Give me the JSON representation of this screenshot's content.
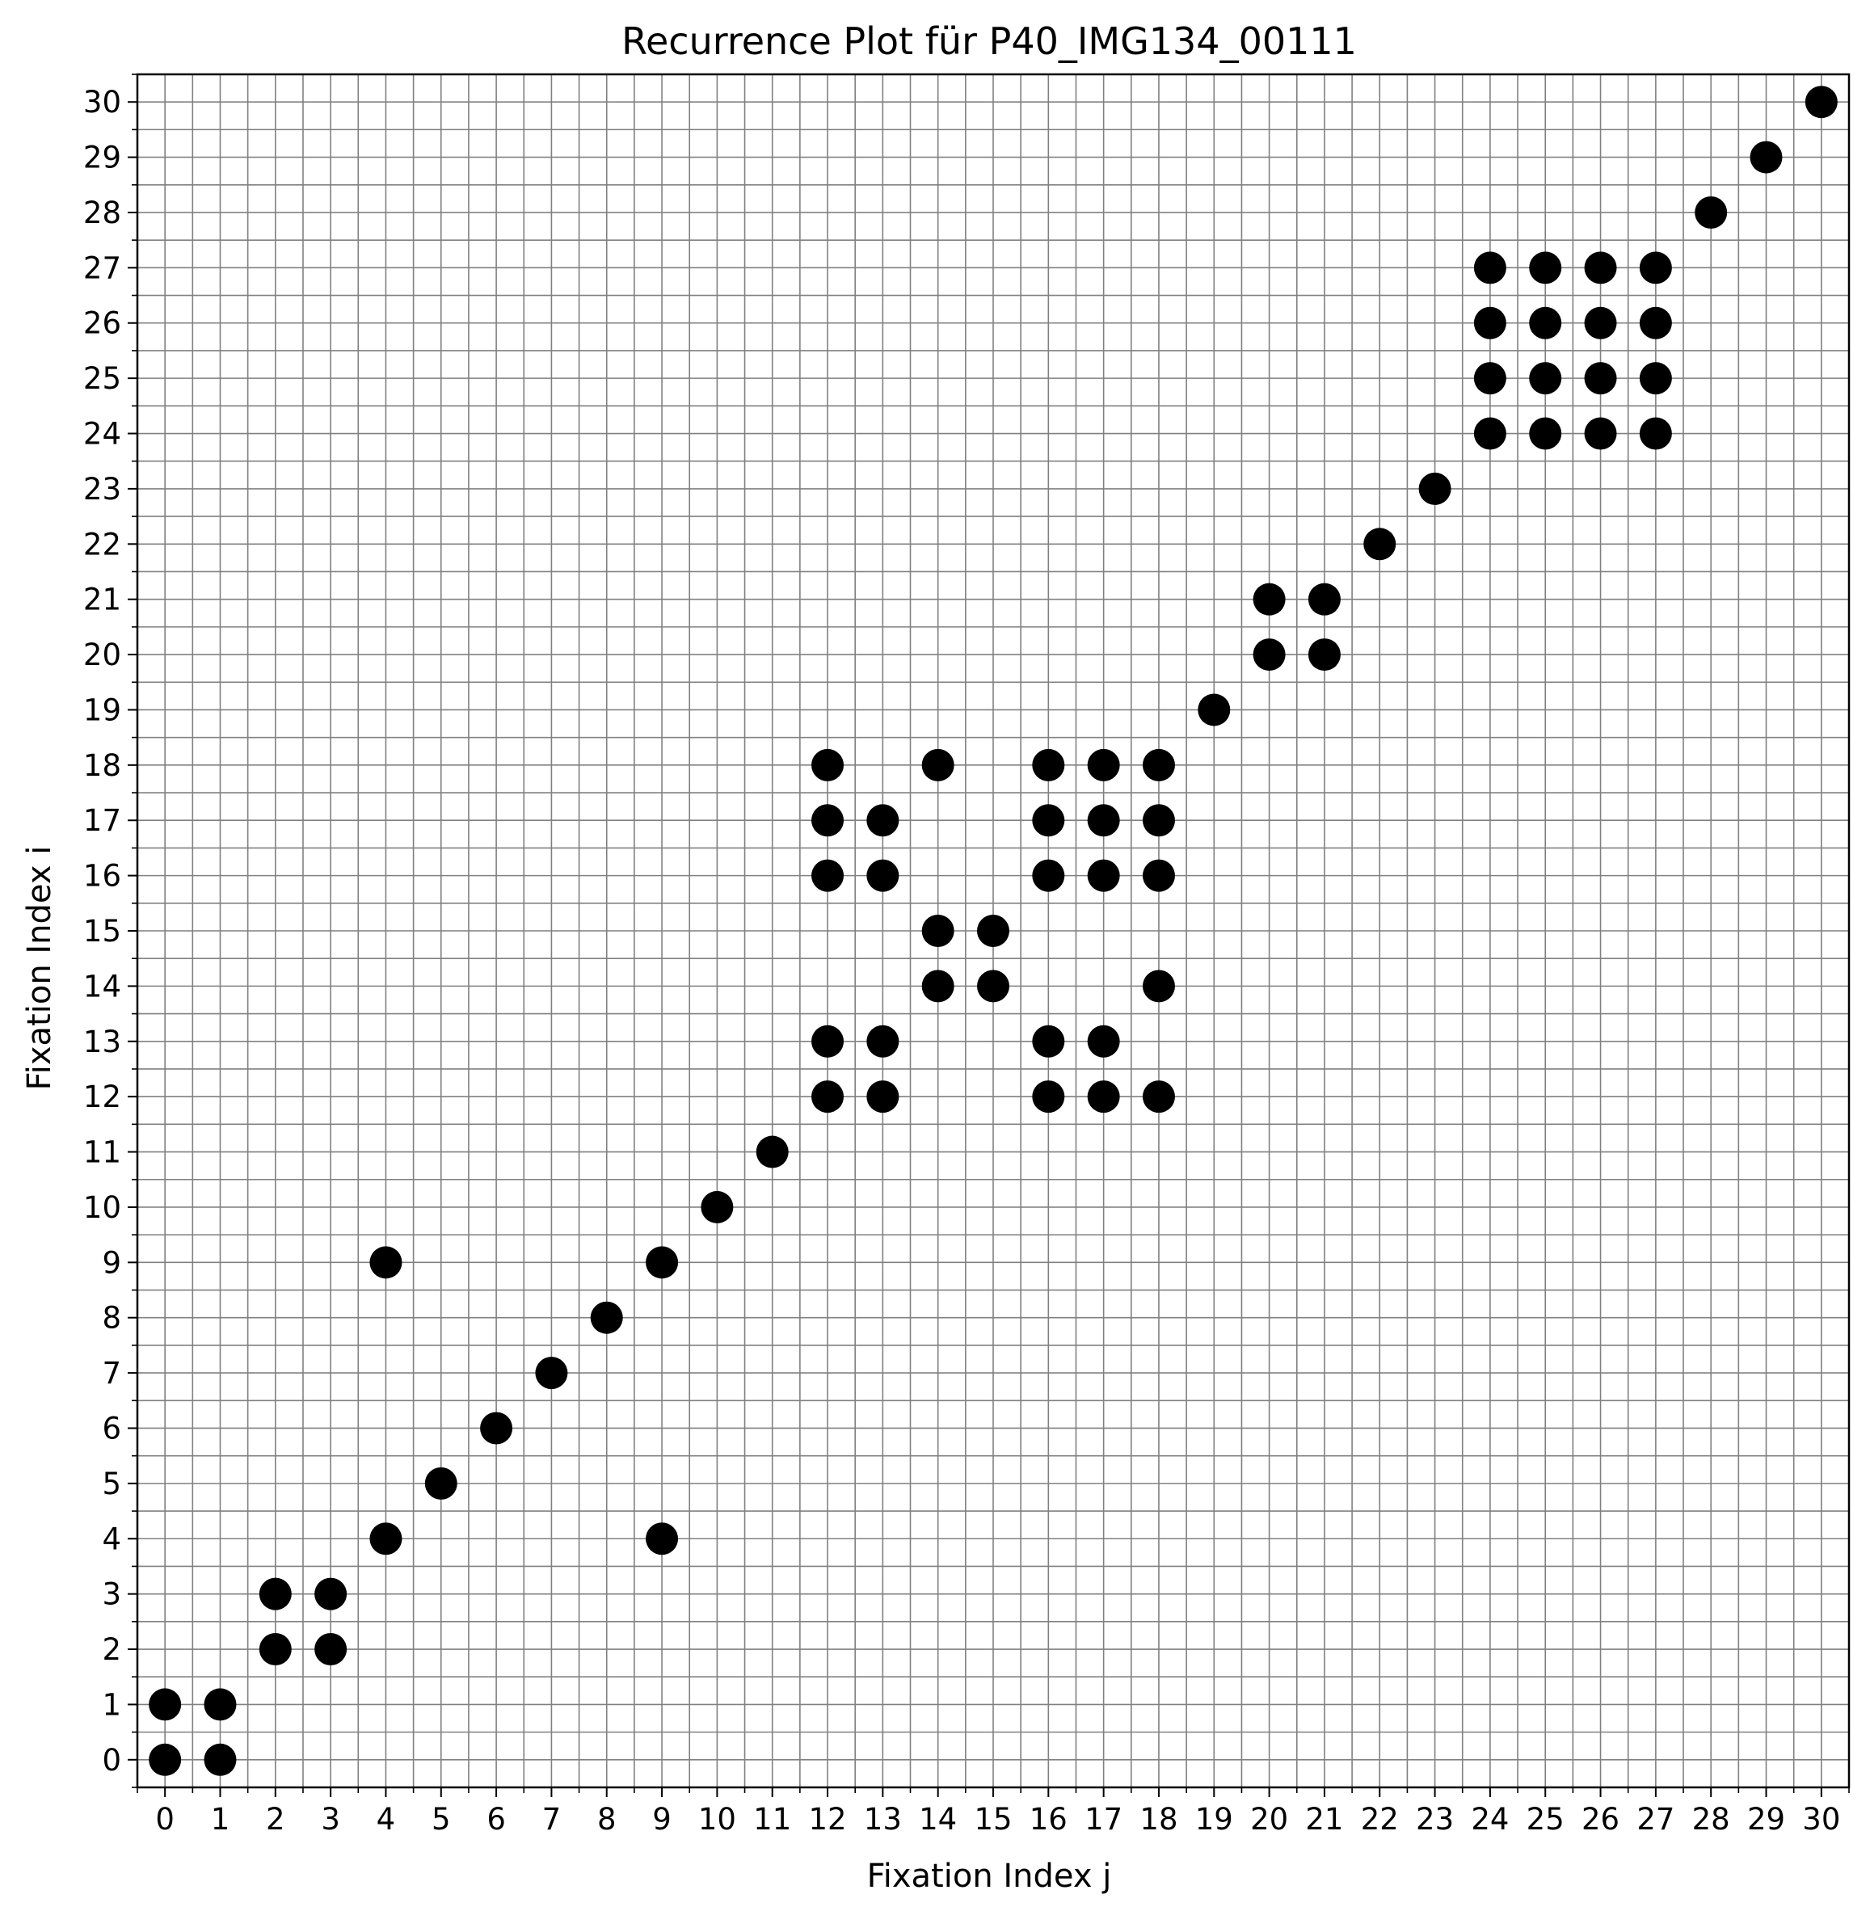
{
  "chart_data": {
    "type": "scatter",
    "title": "Recurrence Plot für P40_IMG134_00111",
    "xlabel": "Fixation Index j",
    "ylabel": "Fixation Index i",
    "xlim": [
      -0.5,
      30.5
    ],
    "ylim": [
      -0.5,
      30.5
    ],
    "xticks": [
      0,
      1,
      2,
      3,
      4,
      5,
      6,
      7,
      8,
      9,
      10,
      11,
      12,
      13,
      14,
      15,
      16,
      17,
      18,
      19,
      20,
      21,
      22,
      23,
      24,
      25,
      26,
      27,
      28,
      29,
      30
    ],
    "yticks": [
      0,
      1,
      2,
      3,
      4,
      5,
      6,
      7,
      8,
      9,
      10,
      11,
      12,
      13,
      14,
      15,
      16,
      17,
      18,
      19,
      20,
      21,
      22,
      23,
      24,
      25,
      26,
      27,
      28,
      29,
      30
    ],
    "grid": true,
    "grid_minor_step": 0.5,
    "marker_color": "#000000",
    "grid_color": "#808080",
    "points": [
      [
        0,
        0
      ],
      [
        0,
        1
      ],
      [
        1,
        0
      ],
      [
        1,
        1
      ],
      [
        2,
        2
      ],
      [
        2,
        3
      ],
      [
        3,
        2
      ],
      [
        3,
        3
      ],
      [
        4,
        4
      ],
      [
        4,
        9
      ],
      [
        9,
        4
      ],
      [
        9,
        9
      ],
      [
        5,
        5
      ],
      [
        6,
        6
      ],
      [
        7,
        7
      ],
      [
        8,
        8
      ],
      [
        10,
        10
      ],
      [
        11,
        11
      ],
      [
        12,
        12
      ],
      [
        12,
        13
      ],
      [
        12,
        16
      ],
      [
        12,
        17
      ],
      [
        12,
        18
      ],
      [
        13,
        12
      ],
      [
        13,
        13
      ],
      [
        13,
        16
      ],
      [
        13,
        17
      ],
      [
        14,
        14
      ],
      [
        14,
        15
      ],
      [
        14,
        18
      ],
      [
        15,
        14
      ],
      [
        15,
        15
      ],
      [
        16,
        12
      ],
      [
        16,
        13
      ],
      [
        16,
        16
      ],
      [
        16,
        17
      ],
      [
        16,
        18
      ],
      [
        17,
        12
      ],
      [
        17,
        13
      ],
      [
        17,
        16
      ],
      [
        17,
        17
      ],
      [
        17,
        18
      ],
      [
        18,
        12
      ],
      [
        18,
        14
      ],
      [
        18,
        16
      ],
      [
        18,
        17
      ],
      [
        18,
        18
      ],
      [
        19,
        19
      ],
      [
        20,
        20
      ],
      [
        20,
        21
      ],
      [
        21,
        20
      ],
      [
        21,
        21
      ],
      [
        22,
        22
      ],
      [
        23,
        23
      ],
      [
        24,
        24
      ],
      [
        24,
        25
      ],
      [
        24,
        26
      ],
      [
        24,
        27
      ],
      [
        25,
        24
      ],
      [
        25,
        25
      ],
      [
        25,
        26
      ],
      [
        25,
        27
      ],
      [
        26,
        24
      ],
      [
        26,
        25
      ],
      [
        26,
        26
      ],
      [
        26,
        27
      ],
      [
        27,
        24
      ],
      [
        27,
        25
      ],
      [
        27,
        26
      ],
      [
        27,
        27
      ],
      [
        28,
        28
      ],
      [
        29,
        29
      ],
      [
        30,
        30
      ]
    ]
  }
}
